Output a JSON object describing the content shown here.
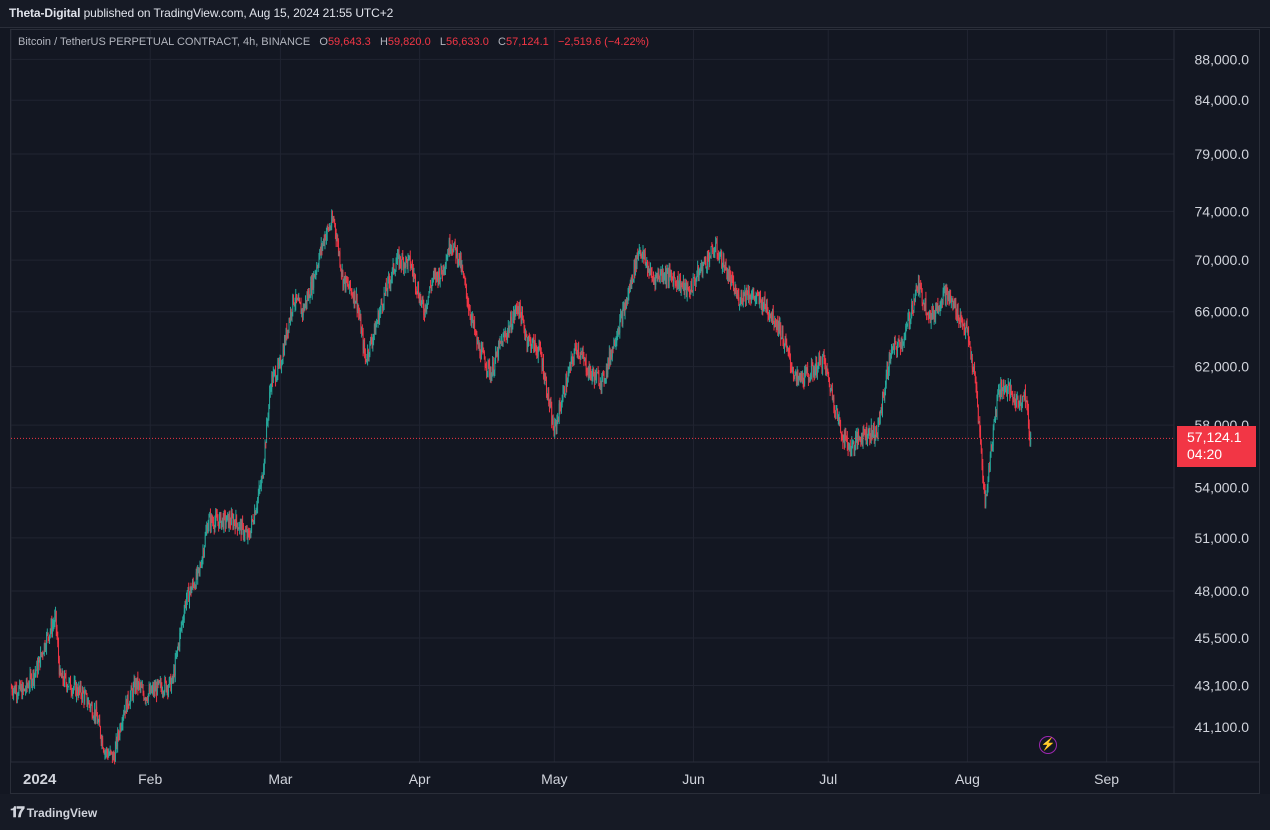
{
  "header": {
    "publisher": "Theta-Digital",
    "published_text": " published on TradingView.com, Aug 15, 2024 21:55 UTC+2"
  },
  "legend": {
    "symbol": "Bitcoin / TetherUS PERPETUAL CONTRACT, 4h, BINANCE",
    "o_label": "O",
    "o_value": "59,643.3",
    "h_label": "H",
    "h_value": "59,820.0",
    "l_label": "L",
    "l_value": "56,633.0",
    "c_label": "C",
    "c_value": "57,124.1",
    "change": "−2,519.6 (−4.22%)"
  },
  "last_price": {
    "value": "57,124.1",
    "countdown": "04:20"
  },
  "footer": {
    "brand": "TradingView"
  },
  "colors": {
    "background": "#131722",
    "grid": "#202431",
    "up": "#26a69a",
    "down": "#f23645",
    "text": "#d1d4dc",
    "accent": "#9c27b0"
  },
  "chart_data": {
    "type": "candlestick",
    "title": "Bitcoin / TetherUS PERPETUAL CONTRACT, 4h, BINANCE",
    "y_scale": "log",
    "ylim": [
      39500,
      91000
    ],
    "y_ticks": [
      "88,000.0",
      "84,000.0",
      "79,000.0",
      "74,000.0",
      "70,000.0",
      "66,000.0",
      "62,000.0",
      "58,000.0",
      "54,000.0",
      "51,000.0",
      "48,000.0",
      "45,500.0",
      "43,100.0",
      "41,100.0"
    ],
    "y_tick_values": [
      88000,
      84000,
      79000,
      74000,
      70000,
      66000,
      62000,
      58000,
      54000,
      51000,
      48000,
      45500,
      43100,
      41100
    ],
    "x_range": [
      "2024-01-01",
      "2024-09-16"
    ],
    "x_ticks": [
      {
        "label": "2024",
        "date": "2024-01-01"
      },
      {
        "label": "Feb",
        "date": "2024-02-01"
      },
      {
        "label": "Mar",
        "date": "2024-03-01"
      },
      {
        "label": "Apr",
        "date": "2024-04-01"
      },
      {
        "label": "May",
        "date": "2024-05-01"
      },
      {
        "label": "Jun",
        "date": "2024-06-01"
      },
      {
        "label": "Jul",
        "date": "2024-07-01"
      },
      {
        "label": "Aug",
        "date": "2024-08-01"
      },
      {
        "label": "Sep",
        "date": "2024-09-01"
      }
    ],
    "last_price": 57124.1,
    "price_path": [
      [
        "2024-01-01",
        43000
      ],
      [
        "2024-01-04",
        42800
      ],
      [
        "2024-01-07",
        44000
      ],
      [
        "2024-01-09",
        45500
      ],
      [
        "2024-01-11",
        46500
      ],
      [
        "2024-01-12",
        43500
      ],
      [
        "2024-01-15",
        43000
      ],
      [
        "2024-01-17",
        42700
      ],
      [
        "2024-01-20",
        41700
      ],
      [
        "2024-01-22",
        40000
      ],
      [
        "2024-01-24",
        39700
      ],
      [
        "2024-01-26",
        41800
      ],
      [
        "2024-01-29",
        43200
      ],
      [
        "2024-01-31",
        42600
      ],
      [
        "2024-02-03",
        43000
      ],
      [
        "2024-02-06",
        43200
      ],
      [
        "2024-02-09",
        47500
      ],
      [
        "2024-02-12",
        49000
      ],
      [
        "2024-02-14",
        52000
      ],
      [
        "2024-02-17",
        52000
      ],
      [
        "2024-02-20",
        52000
      ],
      [
        "2024-02-23",
        51000
      ],
      [
        "2024-02-26",
        54500
      ],
      [
        "2024-02-28",
        61000
      ],
      [
        "2024-03-01",
        62000
      ],
      [
        "2024-03-04",
        67000
      ],
      [
        "2024-03-06",
        66000
      ],
      [
        "2024-03-08",
        68000
      ],
      [
        "2024-03-11",
        72000
      ],
      [
        "2024-03-13",
        73300
      ],
      [
        "2024-03-15",
        68500
      ],
      [
        "2024-03-18",
        67000
      ],
      [
        "2024-03-20",
        62500
      ],
      [
        "2024-03-22",
        64500
      ],
      [
        "2024-03-24",
        67000
      ],
      [
        "2024-03-27",
        70000
      ],
      [
        "2024-03-30",
        69800
      ],
      [
        "2024-04-02",
        66000
      ],
      [
        "2024-04-04",
        68500
      ],
      [
        "2024-04-06",
        69000
      ],
      [
        "2024-04-08",
        71500
      ],
      [
        "2024-04-10",
        70000
      ],
      [
        "2024-04-12",
        66500
      ],
      [
        "2024-04-14",
        63500
      ],
      [
        "2024-04-17",
        61500
      ],
      [
        "2024-04-19",
        63500
      ],
      [
        "2024-04-21",
        64800
      ],
      [
        "2024-04-23",
        66500
      ],
      [
        "2024-04-25",
        64000
      ],
      [
        "2024-04-28",
        63000
      ],
      [
        "2024-05-01",
        57500
      ],
      [
        "2024-05-03",
        60000
      ],
      [
        "2024-05-06",
        63500
      ],
      [
        "2024-05-09",
        61500
      ],
      [
        "2024-05-12",
        61000
      ],
      [
        "2024-05-15",
        64500
      ],
      [
        "2024-05-17",
        66500
      ],
      [
        "2024-05-20",
        71000
      ],
      [
        "2024-05-23",
        68500
      ],
      [
        "2024-05-25",
        69000
      ],
      [
        "2024-05-28",
        68500
      ],
      [
        "2024-05-31",
        67500
      ],
      [
        "2024-06-03",
        69500
      ],
      [
        "2024-06-06",
        71000
      ],
      [
        "2024-06-08",
        69500
      ],
      [
        "2024-06-11",
        67000
      ],
      [
        "2024-06-13",
        67500
      ],
      [
        "2024-06-17",
        66500
      ],
      [
        "2024-06-20",
        65000
      ],
      [
        "2024-06-24",
        61000
      ],
      [
        "2024-06-27",
        61500
      ],
      [
        "2024-06-30",
        62500
      ],
      [
        "2024-07-04",
        57500
      ],
      [
        "2024-07-06",
        56500
      ],
      [
        "2024-07-09",
        57500
      ],
      [
        "2024-07-12",
        57500
      ],
      [
        "2024-07-15",
        63000
      ],
      [
        "2024-07-18",
        64000
      ],
      [
        "2024-07-21",
        68000
      ],
      [
        "2024-07-24",
        65500
      ],
      [
        "2024-07-27",
        67500
      ],
      [
        "2024-07-29",
        66500
      ],
      [
        "2024-08-01",
        64500
      ],
      [
        "2024-08-03",
        60500
      ],
      [
        "2024-08-05",
        53000
      ],
      [
        "2024-08-06",
        55500
      ],
      [
        "2024-08-08",
        60500
      ],
      [
        "2024-08-10",
        60500
      ],
      [
        "2024-08-12",
        59500
      ],
      [
        "2024-08-14",
        60000
      ],
      [
        "2024-08-15",
        57124
      ]
    ]
  }
}
